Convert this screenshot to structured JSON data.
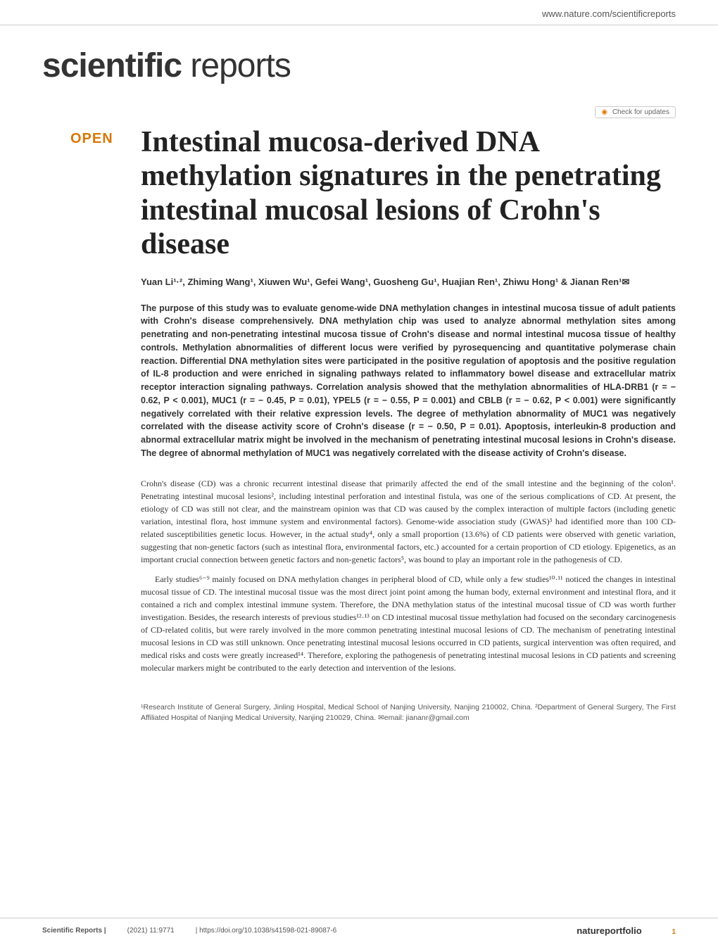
{
  "header": {
    "url": "www.nature.com/scientificreports"
  },
  "journal": {
    "name_bold": "scientific",
    "name_light": "reports"
  },
  "check_updates": {
    "label": "Check for updates"
  },
  "open_label": "OPEN",
  "title": "Intestinal mucosa-derived DNA methylation signatures in the penetrating intestinal mucosal lesions of Crohn's disease",
  "authors": "Yuan Li¹·², Zhiming Wang¹, Xiuwen Wu¹, Gefei Wang¹, Guosheng Gu¹, Huajian Ren¹, Zhiwu Hong¹ & Jianan Ren¹✉",
  "abstract": "The purpose of this study was to evaluate genome-wide DNA methylation changes in intestinal mucosa tissue of adult patients with Crohn's disease comprehensively. DNA methylation chip was used to analyze abnormal methylation sites among penetrating and non-penetrating intestinal mucosa tissue of Crohn's disease and normal intestinal mucosa tissue of healthy controls. Methylation abnormalities of different locus were verified by pyrosequencing and quantitative polymerase chain reaction. Differential DNA methylation sites were participated in the positive regulation of apoptosis and the positive regulation of IL-8 production and were enriched in signaling pathways related to inflammatory bowel disease and extracellular matrix receptor interaction signaling pathways. Correlation analysis showed that the methylation abnormalities of HLA-DRB1 (r = − 0.62, P < 0.001), MUC1 (r = − 0.45, P = 0.01), YPEL5 (r = − 0.55, P = 0.001) and CBLB (r = − 0.62, P < 0.001) were significantly negatively correlated with their relative expression levels. The degree of methylation abnormality of MUC1 was negatively correlated with the disease activity score of Crohn's disease (r = − 0.50, P = 0.01). Apoptosis, interleukin-8 production and abnormal extracellular matrix might be involved in the mechanism of penetrating intestinal mucosal lesions in Crohn's disease. The degree of abnormal methylation of MUC1 was negatively correlated with the disease activity of Crohn's disease.",
  "body": {
    "para1": "Crohn's disease (CD) was a chronic recurrent intestinal disease that primarily affected the end of the small intestine and the beginning of the colon¹. Penetrating intestinal mucosal lesions², including intestinal perforation and intestinal fistula, was one of the serious complications of CD. At present, the etiology of CD was still not clear, and the mainstream opinion was that CD was caused by the complex interaction of multiple factors (including genetic variation, intestinal flora, host immune system and environmental factors). Genome-wide association study (GWAS)³ had identified more than 100 CD-related susceptibilities genetic locus. However, in the actual study⁴, only a small proportion (13.6%) of CD patients were observed with genetic variation, suggesting that non-genetic factors (such as intestinal flora, environmental factors, etc.) accounted for a certain proportion of CD etiology. Epigenetics, as an important crucial connection between genetic factors and non-genetic factors⁵, was bound to play an important role in the pathogenesis of CD.",
    "para2": "Early studies⁶⁻⁹ mainly focused on DNA methylation changes in peripheral blood of CD, while only a few studies¹⁰·¹¹ noticed the changes in intestinal mucosal tissue of CD. The intestinal mucosal tissue was the most direct joint point among the human body, external environment and intestinal flora, and it contained a rich and complex intestinal immune system. Therefore, the DNA methylation status of the intestinal mucosal tissue of CD was worth further investigation. Besides, the research interests of previous studies¹²·¹³ on CD intestinal mucosal tissue methylation had focused on the secondary carcinogenesis of CD-related colitis, but were rarely involved in the more common penetrating intestinal mucosal lesions of CD. The mechanism of penetrating intestinal mucosal lesions in CD was still unknown. Once penetrating intestinal mucosal lesions occurred in CD patients, surgical intervention was often required, and medical risks and costs were greatly increased¹⁴. Therefore, exploring the pathogenesis of penetrating intestinal mucosal lesions in CD patients and screening molecular markers might be contributed to the early detection and intervention of the lesions."
  },
  "affiliations": "¹Research Institute of General Surgery, Jinling Hospital, Medical School of Nanjing University, Nanjing 210002, China. ²Department of General Surgery, The First Affiliated Hospital of Nanjing Medical University, Nanjing 210029, China. ✉email: jiananr@gmail.com",
  "footer": {
    "journal": "Scientific Reports |",
    "citation": "(2021) 11:9771",
    "doi": "| https://doi.org/10.1038/s41598-021-89087-6",
    "publisher": "natureportfolio",
    "page": "1"
  },
  "colors": {
    "accent": "#d97706",
    "text": "#333333",
    "link": "#1a6ba8",
    "border": "#cccccc",
    "background": "#ffffff"
  }
}
